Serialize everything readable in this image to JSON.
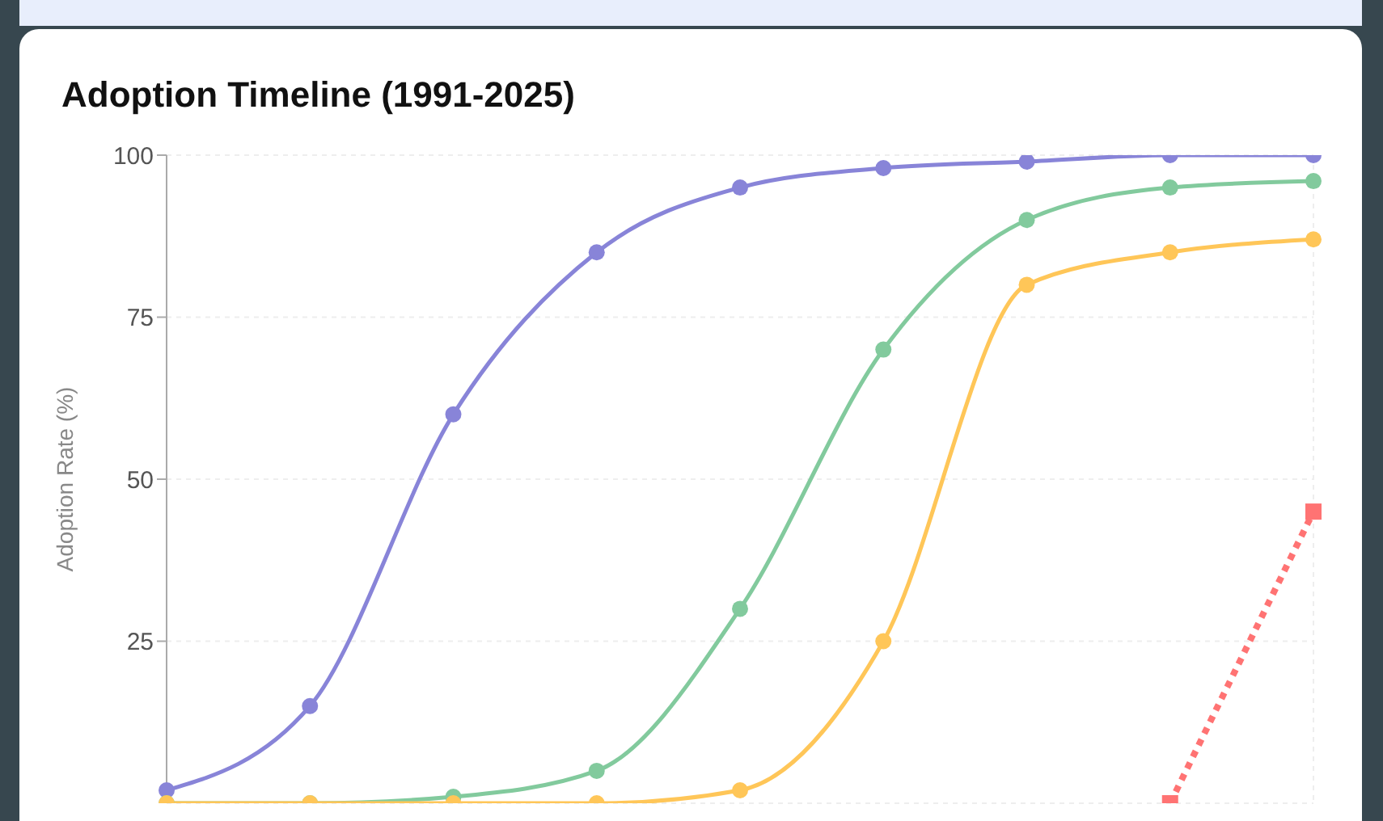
{
  "chart_data": {
    "type": "line",
    "title": "Adoption Timeline (1991-2025)",
    "ylabel": "Adoption Rate (%)",
    "categories": [
      null,
      null,
      null,
      null,
      null,
      null,
      null,
      null,
      null
    ],
    "series": [
      {
        "color": "#8884d8",
        "values": [
          2,
          15,
          60,
          85,
          95,
          98,
          99,
          100,
          100
        ],
        "marker": "circle",
        "line_style": "solid"
      },
      {
        "color": "#82ca9d",
        "values": [
          0,
          0,
          1,
          5,
          30,
          70,
          90,
          95,
          96
        ],
        "marker": "circle",
        "line_style": "solid"
      },
      {
        "color": "#ffc658",
        "values": [
          0,
          0,
          0,
          0,
          2,
          25,
          80,
          85,
          87
        ],
        "marker": "circle",
        "line_style": "solid"
      },
      {
        "color": "#ff7373",
        "values": [
          null,
          null,
          null,
          null,
          null,
          null,
          null,
          0,
          45
        ],
        "marker": "square",
        "line_style": "dotted"
      }
    ],
    "ylim": [
      0,
      100
    ],
    "yticks": [
      25,
      50,
      75,
      100
    ],
    "grid": true,
    "tick_labels": "y",
    "legend": false
  }
}
